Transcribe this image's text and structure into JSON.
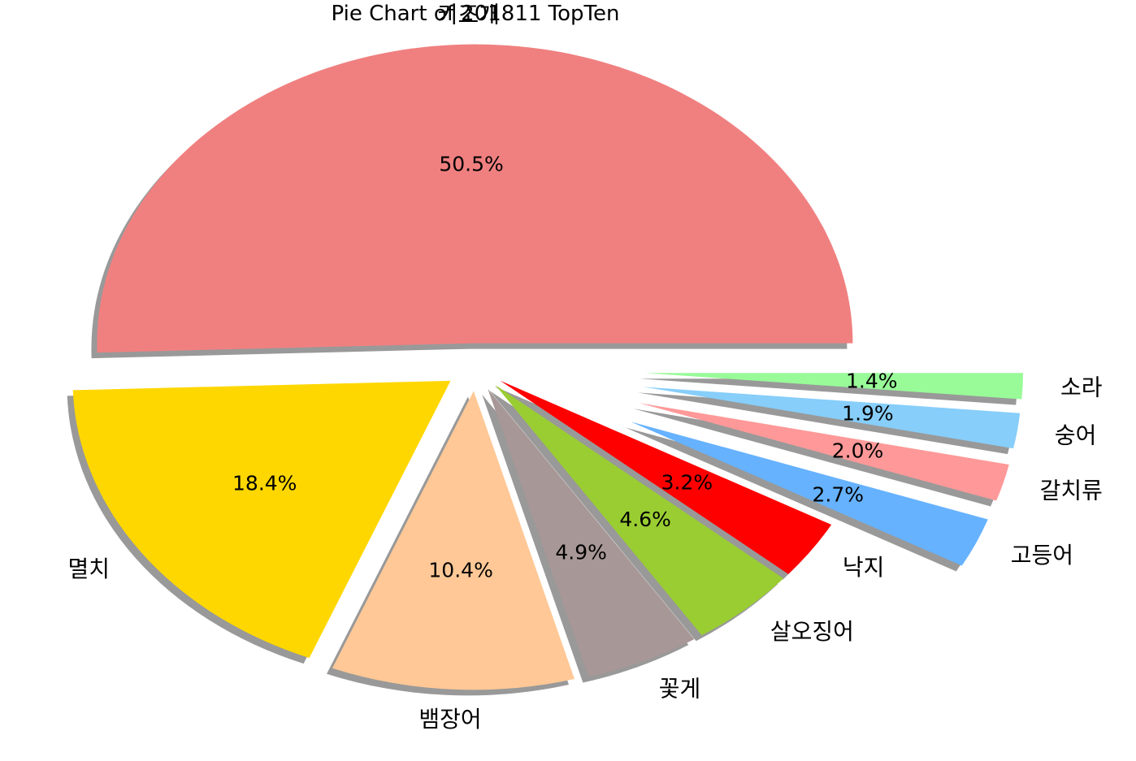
{
  "chart_data": {
    "type": "pie",
    "title": "Pie Chart of 201811 TopTen",
    "shadow": true,
    "start_angle_deg": 0,
    "direction": "counterclockwise",
    "slices": [
      {
        "label": "키조개",
        "value": 50.5,
        "pct_label": "50.5%",
        "color": "#f08080",
        "exploded": true
      },
      {
        "label": "멸치",
        "value": 18.4,
        "pct_label": "18.4%",
        "color": "#ffd700",
        "exploded": true
      },
      {
        "label": "뱀장어",
        "value": 10.4,
        "pct_label": "10.4%",
        "color": "#ffc896",
        "exploded": true
      },
      {
        "label": "꽃게",
        "value": 4.9,
        "pct_label": "4.9%",
        "color": "#a79796",
        "exploded": true
      },
      {
        "label": "살오징어",
        "value": 4.6,
        "pct_label": "4.6%",
        "color": "#9acd32",
        "exploded": true
      },
      {
        "label": "낙지",
        "value": 3.2,
        "pct_label": "3.2%",
        "color": "#ff0000",
        "exploded": true
      },
      {
        "label": "고등어",
        "value": 2.7,
        "pct_label": "2.7%",
        "color": "#66b2ff",
        "exploded": true
      },
      {
        "label": "갈치류",
        "value": 2.0,
        "pct_label": "2.0%",
        "color": "#ff9999",
        "exploded": true
      },
      {
        "label": "숭어",
        "value": 1.9,
        "pct_label": "1.9%",
        "color": "#87cefa",
        "exploded": true
      },
      {
        "label": "소라",
        "value": 1.4,
        "pct_label": "1.4%",
        "color": "#98fb98",
        "exploded": true
      }
    ]
  }
}
